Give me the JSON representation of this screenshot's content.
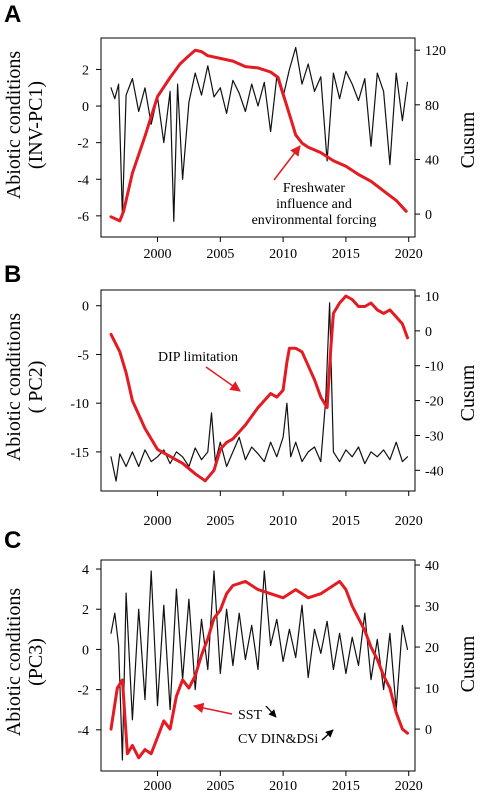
{
  "colors": {
    "abiotic": "#111111",
    "cusum": "#e31b23",
    "axis": "#000000"
  },
  "chart_data": [
    {
      "panel": "A",
      "type": "line",
      "ylabel": "Abiotic  conditions\n(INV-PC1)",
      "y2label": "Cusum",
      "xlim": [
        1995.5,
        2020.5
      ],
      "xticks": [
        2000,
        2005,
        2010,
        2015,
        2020
      ],
      "ylim": [
        -6.5,
        3.5
      ],
      "yticks": [
        2,
        0,
        -2,
        -4,
        -6
      ],
      "y2lim": [
        -8,
        126
      ],
      "y2ticks": [
        120,
        80,
        40,
        0
      ],
      "annotation": {
        "lines": [
          "Freshwater",
          "influence and",
          "environmental forcing"
        ],
        "arrow": "up-right"
      },
      "series": [
        {
          "axis": "left",
          "x": [
            1996.3,
            1996.6,
            1996.9,
            1997.2,
            1997.5,
            1998.0,
            1998.5,
            1999.0,
            1999.5,
            2000.0,
            2000.5,
            2001.0,
            2001.3,
            2001.6,
            2002.0,
            2002.5,
            2003.0,
            2003.5,
            2004.0,
            2004.5,
            2005.0,
            2005.5,
            2006.0,
            2006.5,
            2007.0,
            2007.5,
            2008.0,
            2008.5,
            2009.0,
            2009.5,
            2010.0,
            2010.5,
            2011.0,
            2011.5,
            2012.0,
            2012.5,
            2013.0,
            2013.5,
            2014.0,
            2014.5,
            2015.0,
            2015.5,
            2016.0,
            2016.5,
            2017.0,
            2017.5,
            2018.0,
            2018.5,
            2019.0,
            2019.5,
            2019.9
          ],
          "values": [
            1.0,
            0.4,
            1.2,
            -6.0,
            0.6,
            1.5,
            -0.3,
            1.0,
            -1.0,
            0.5,
            -2.0,
            0.8,
            -6.3,
            1.2,
            -4.0,
            0.2,
            1.8,
            0.6,
            2.2,
            0.5,
            1.0,
            -0.4,
            1.4,
            0.7,
            -0.3,
            1.2,
            0.0,
            1.3,
            -1.4,
            1.6,
            0.5,
            2.0,
            3.2,
            1.2,
            2.3,
            0.8,
            1.6,
            -3.0,
            1.8,
            0.4,
            1.9,
            1.2,
            0.3,
            1.5,
            -2.2,
            1.8,
            0.8,
            -3.2,
            1.8,
            -0.8,
            1.3
          ]
        },
        {
          "axis": "right",
          "x": [
            1996.3,
            1997.0,
            1997.3,
            1998.0,
            1999.0,
            2000.0,
            2001.0,
            2001.8,
            2002.5,
            2003.0,
            2003.5,
            2004.0,
            2005.0,
            2006.0,
            2007.0,
            2008.0,
            2009.0,
            2009.6,
            2010.0,
            2010.6,
            2011.0,
            2011.5,
            2012.0,
            2013.0,
            2014.0,
            2015.0,
            2016.0,
            2017.0,
            2018.0,
            2019.0,
            2019.8
          ],
          "values": [
            -2,
            -5,
            2,
            30,
            57,
            86,
            100,
            110,
            116,
            120,
            119,
            116,
            114,
            112,
            108,
            107,
            104,
            100,
            88,
            70,
            58,
            52,
            49,
            45,
            39,
            35,
            29,
            24,
            17,
            10,
            2
          ]
        }
      ]
    },
    {
      "panel": "B",
      "type": "line",
      "ylabel": "Abiotic  conditions\n( PC2)",
      "y2label": "Cusum",
      "xlim": [
        1995.5,
        2020.5
      ],
      "xticks": [
        2000,
        2005,
        2010,
        2015,
        2020
      ],
      "ylim": [
        -18.5,
        1
      ],
      "yticks": [
        0,
        -5,
        -10,
        -15
      ],
      "y2lim": [
        -44.5,
        10
      ],
      "y2ticks": [
        10,
        0,
        -10,
        -20,
        -30,
        -40
      ],
      "annotation": {
        "lines": [
          "DIP limitation"
        ],
        "arrow": "down-right"
      },
      "series": [
        {
          "axis": "left",
          "x": [
            1996.3,
            1996.7,
            1997.0,
            1997.5,
            1998.0,
            1998.5,
            1999.0,
            1999.5,
            2000.0,
            2000.5,
            2001.0,
            2001.5,
            2002.0,
            2002.5,
            2003.0,
            2003.5,
            2004.0,
            2004.3,
            2004.6,
            2005.0,
            2005.5,
            2006.0,
            2006.5,
            2007.0,
            2007.5,
            2008.0,
            2008.5,
            2009.0,
            2009.5,
            2010.0,
            2010.3,
            2010.6,
            2011.0,
            2011.5,
            2012.0,
            2012.5,
            2013.0,
            2013.4,
            2013.7,
            2014.0,
            2014.5,
            2015.0,
            2015.5,
            2016.0,
            2016.5,
            2017.0,
            2017.5,
            2018.0,
            2018.5,
            2019.0,
            2019.5,
            2019.9
          ],
          "values": [
            -15.5,
            -18.0,
            -15.2,
            -16.5,
            -15.0,
            -16.5,
            -14.8,
            -16.0,
            -15.5,
            -14.8,
            -16.2,
            -15.0,
            -15.5,
            -16.5,
            -14.6,
            -15.8,
            -15.0,
            -11.0,
            -16.0,
            -14.0,
            -16.5,
            -15.0,
            -13.5,
            -15.8,
            -14.5,
            -15.2,
            -16.0,
            -14.0,
            -15.5,
            -13.5,
            -10.0,
            -15.5,
            -14.0,
            -16.0,
            -15.0,
            -14.5,
            -16.0,
            -9.5,
            0.3,
            -15.0,
            -16.0,
            -14.8,
            -15.5,
            -14.5,
            -16.2,
            -15.0,
            -15.5,
            -14.8,
            -15.8,
            -14.0,
            -16.0,
            -15.5
          ]
        },
        {
          "axis": "right",
          "x": [
            1996.3,
            1997.0,
            1997.5,
            1998.0,
            1999.0,
            2000.0,
            2001.0,
            2002.0,
            2003.0,
            2003.8,
            2004.5,
            2005.0,
            2005.5,
            2006.0,
            2007.0,
            2008.0,
            2009.0,
            2009.5,
            2010.0,
            2010.3,
            2010.5,
            2011.0,
            2011.5,
            2012.0,
            2012.5,
            2013.0,
            2013.5,
            2013.8,
            2014.0,
            2014.5,
            2015.0,
            2015.5,
            2016.0,
            2016.5,
            2017.0,
            2017.5,
            2018.0,
            2018.5,
            2019.0,
            2019.5,
            2019.9
          ],
          "values": [
            -1,
            -6,
            -12,
            -20,
            -28,
            -34,
            -36,
            -38,
            -41,
            -43,
            -40,
            -34,
            -32,
            -31,
            -27,
            -22,
            -18,
            -19,
            -17,
            -9,
            -5,
            -5,
            -6,
            -10,
            -14,
            -19,
            -22,
            -5,
            5,
            8,
            10,
            9,
            7,
            7,
            8,
            6,
            5,
            6,
            4,
            2,
            -2
          ]
        }
      ]
    },
    {
      "panel": "C",
      "type": "line",
      "ylabel": "Abiotic  conditions\n(PC3)",
      "y2label": "Cusum",
      "xlim": [
        1995.5,
        2020.5
      ],
      "xticks": [
        2000,
        2005,
        2010,
        2015,
        2020
      ],
      "ylim": [
        -5.8,
        4.2
      ],
      "yticks": [
        4,
        2,
        0,
        -2,
        -4
      ],
      "y2lim": [
        -9,
        40
      ],
      "y2ticks": [
        40,
        30,
        20,
        10,
        0
      ],
      "annotation": {
        "lines": [
          "SST",
          "CV DIN&DSi"
        ],
        "arrow": "left"
      },
      "series": [
        {
          "axis": "left",
          "x": [
            1996.3,
            1996.6,
            1996.9,
            1997.2,
            1997.5,
            1998.0,
            1998.5,
            1999.0,
            1999.5,
            2000.0,
            2000.5,
            2001.0,
            2001.5,
            2002.0,
            2002.5,
            2003.0,
            2003.5,
            2004.0,
            2004.5,
            2005.0,
            2005.5,
            2006.0,
            2006.5,
            2007.0,
            2007.5,
            2008.0,
            2008.5,
            2009.0,
            2009.5,
            2010.0,
            2010.5,
            2011.0,
            2011.5,
            2012.0,
            2012.5,
            2013.0,
            2013.5,
            2014.0,
            2014.5,
            2015.0,
            2015.5,
            2016.0,
            2016.5,
            2017.0,
            2017.5,
            2018.0,
            2018.5,
            2019.0,
            2019.5,
            2019.9
          ],
          "values": [
            0.8,
            1.8,
            0.2,
            -5.5,
            2.8,
            -3.5,
            2.0,
            -2.5,
            3.9,
            -2.8,
            2.2,
            -3.0,
            3.0,
            -1.5,
            2.5,
            -2.0,
            1.5,
            -1.0,
            3.9,
            -1.2,
            2.0,
            -0.8,
            1.8,
            -0.5,
            1.2,
            -1.0,
            3.9,
            0.2,
            1.5,
            -0.6,
            1.0,
            -0.4,
            2.2,
            -1.4,
            1.0,
            -0.2,
            1.4,
            -1.0,
            0.8,
            -1.2,
            0.6,
            -0.8,
            1.8,
            -1.5,
            0.5,
            -2.0,
            0.8,
            -3.0,
            1.2,
            0.0
          ]
        },
        {
          "axis": "right",
          "x": [
            1996.3,
            1996.8,
            1997.2,
            1997.6,
            1998.0,
            1998.5,
            1999.0,
            1999.5,
            2000.0,
            2000.5,
            2001.0,
            2001.5,
            2002.0,
            2002.5,
            2003.0,
            2003.5,
            2004.0,
            2004.5,
            2005.0,
            2005.5,
            2006.0,
            2007.0,
            2008.0,
            2009.0,
            2010.0,
            2011.0,
            2012.0,
            2013.0,
            2014.0,
            2014.5,
            2015.0,
            2015.5,
            2016.0,
            2016.5,
            2017.0,
            2017.5,
            2018.0,
            2018.5,
            2019.0,
            2019.5,
            2019.9
          ],
          "values": [
            0,
            10,
            12,
            -6,
            -4,
            -7,
            -5,
            -6,
            -2,
            2,
            0,
            8,
            12,
            10,
            13,
            18,
            22,
            27,
            29,
            33,
            35,
            36,
            34,
            33,
            32,
            34,
            32,
            33,
            35,
            36,
            34,
            30,
            27,
            24,
            20,
            17,
            13,
            10,
            4,
            0,
            -1
          ]
        }
      ]
    }
  ]
}
